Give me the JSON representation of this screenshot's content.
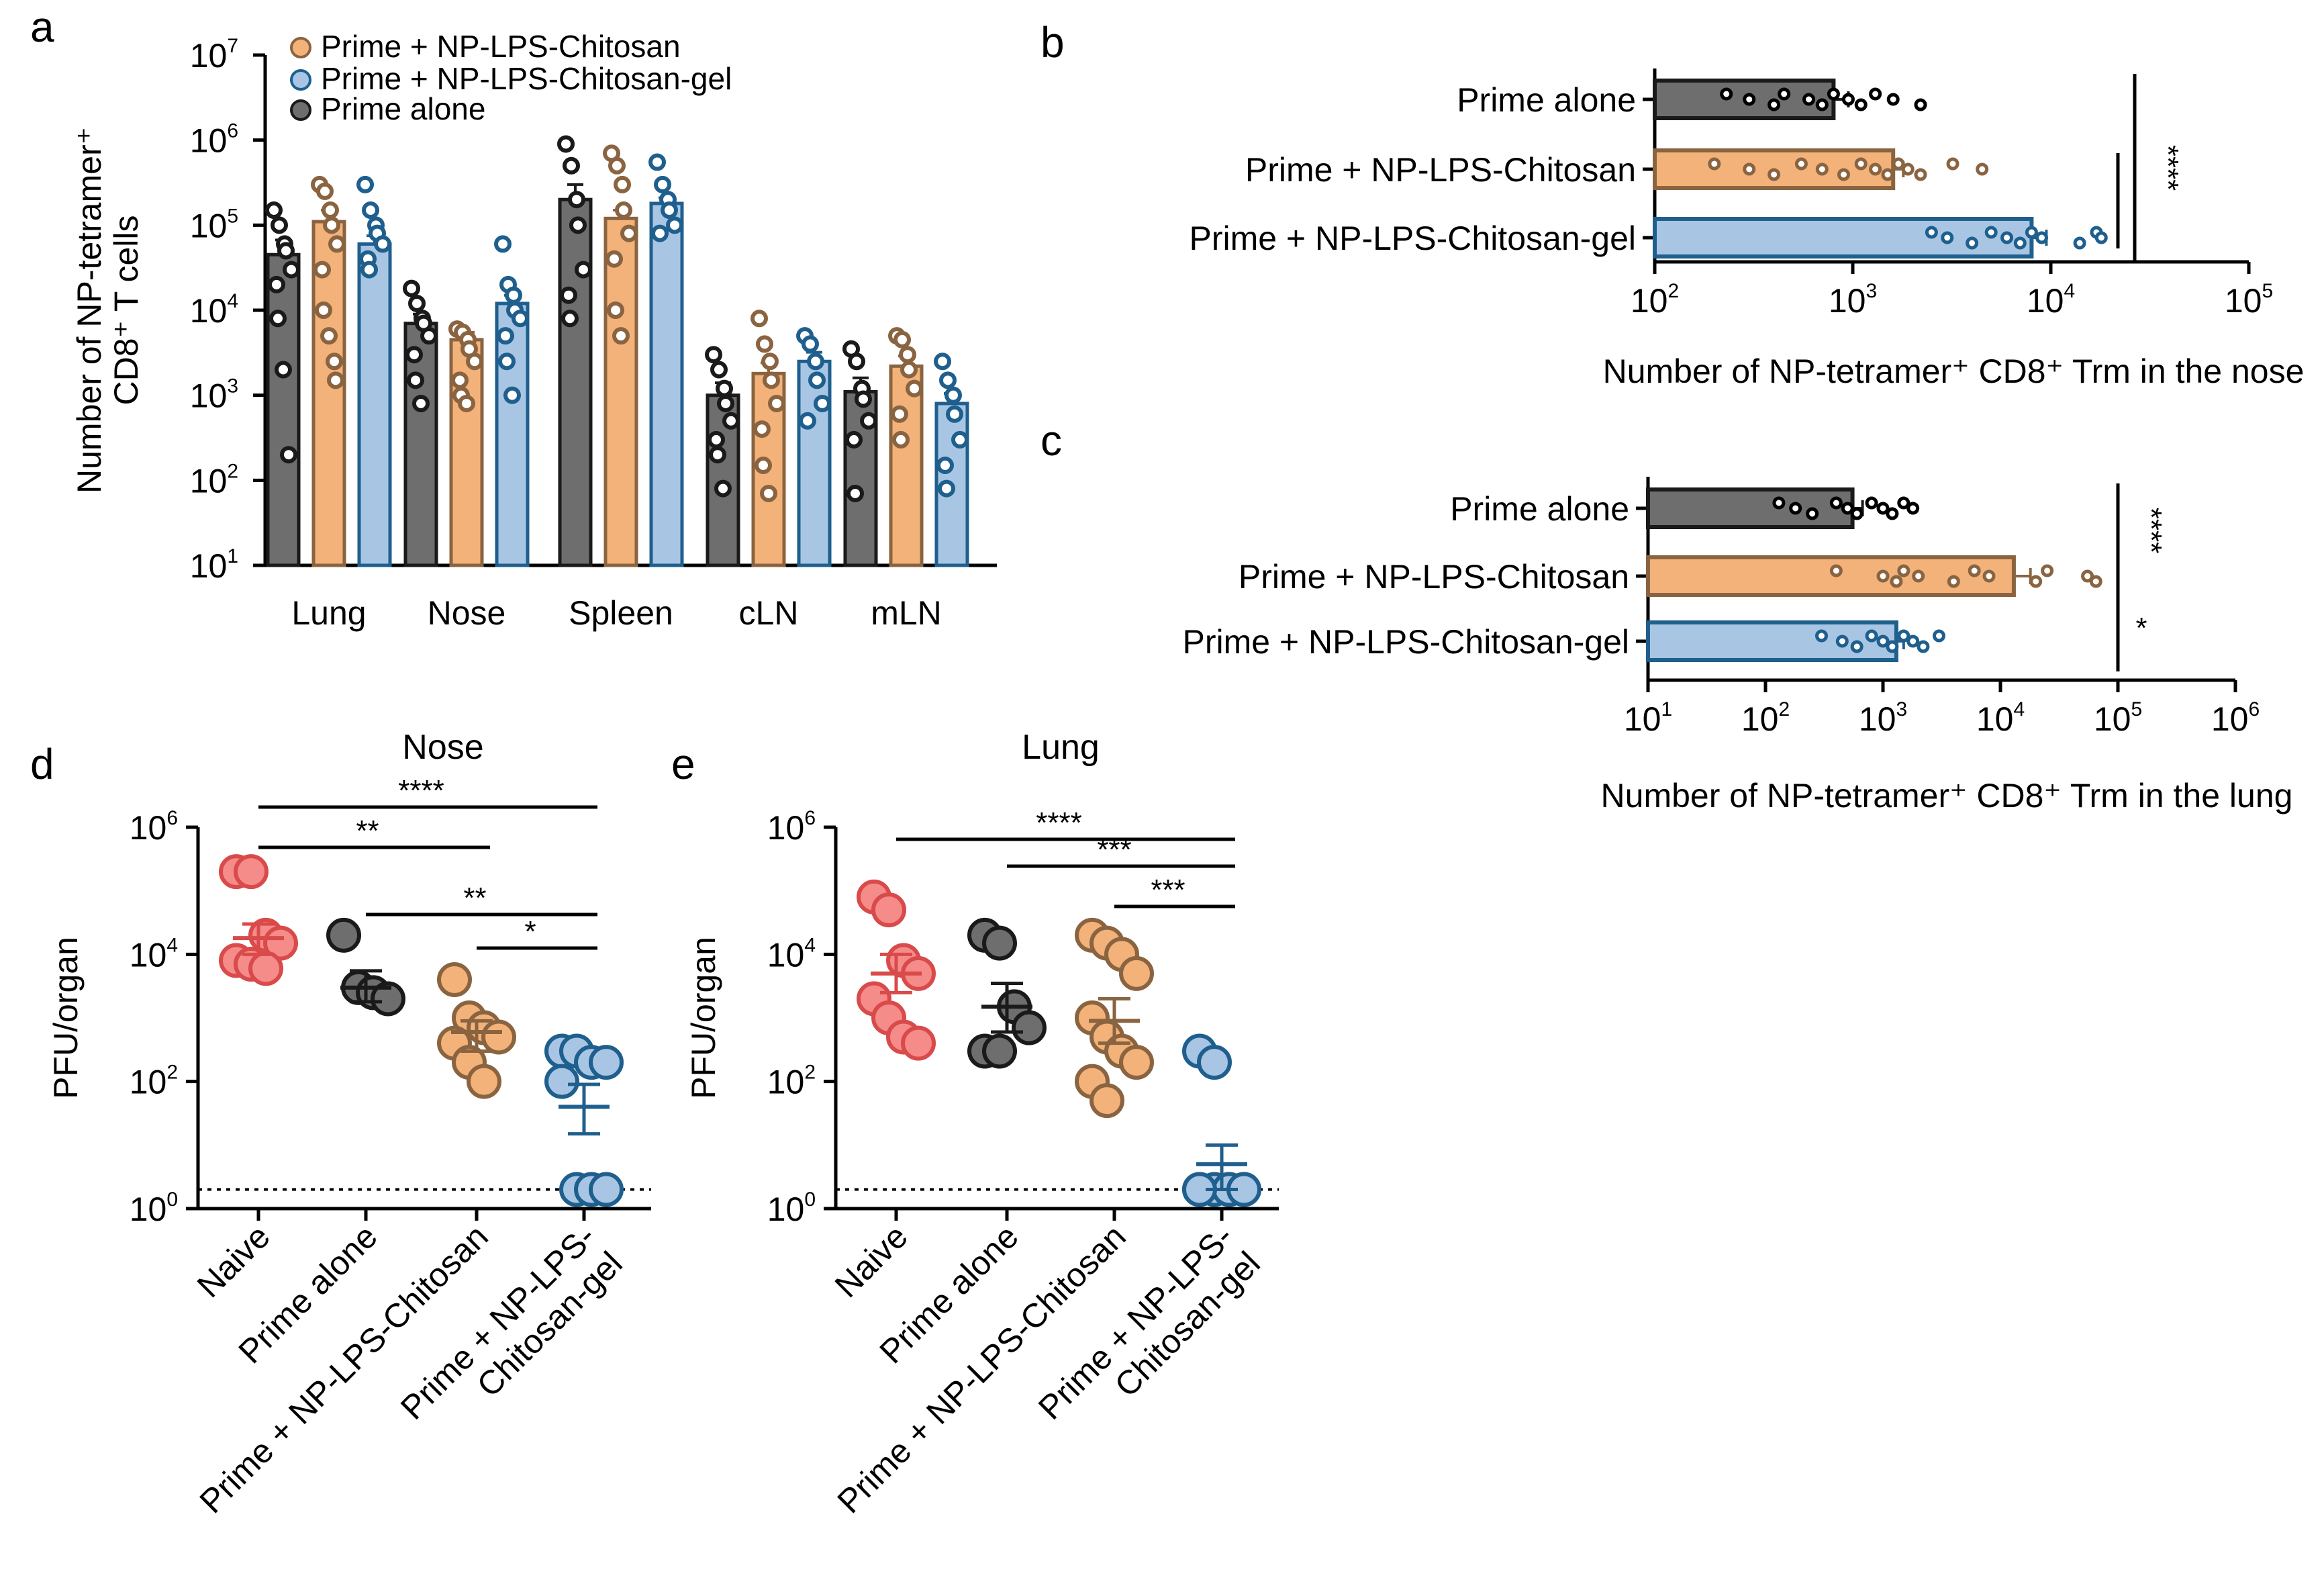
{
  "panels": {
    "a": "a",
    "b": "b",
    "c": "c",
    "d": "d",
    "e": "e"
  },
  "colors": {
    "grey": "#6e6e6e",
    "grey_edge": "#1a1a1a",
    "orange": "#f3b27a",
    "orange_edge": "#8a6440",
    "blue": "#a8c6e4",
    "blue_edge": "#1f5f8e",
    "red": "#f58c8a",
    "red_edge": "#d94a4a",
    "pt_grey": "#8c8c8c"
  },
  "chart_data": [
    {
      "id": "a",
      "type": "bar",
      "title": "",
      "ylabel_line1": "Number of NP-tetramer⁺",
      "ylabel_line2": "CD8⁺ T cells",
      "yscale": "log",
      "ylim_exp": [
        1,
        7
      ],
      "ytick_exps": [
        1,
        2,
        3,
        4,
        5,
        6,
        7
      ],
      "ytick_base": "10",
      "categories": [
        "Lung",
        "Nose",
        "Spleen",
        "cLN",
        "mLN"
      ],
      "legend": [
        "Prime + NP-LPS-Chitosan",
        "Prime + NP-LPS-Chitosan-gel",
        "Prime alone"
      ],
      "series": [
        {
          "name": "Prime alone",
          "color_key": "grey",
          "values": [
            45000,
            7000,
            200000,
            1000,
            1100
          ],
          "errors": [
            22000,
            2000,
            100000,
            400,
            500
          ],
          "points": [
            [
              150000,
              100000,
              60000,
              50000,
              30000,
              20000,
              8000,
              2000,
              200
            ],
            [
              18000,
              12000,
              8000,
              7000,
              5000,
              3000,
              1500,
              800
            ],
            [
              900000,
              500000,
              200000,
              100000,
              30000,
              15000,
              8000
            ],
            [
              3000,
              2000,
              1200,
              800,
              500,
              300,
              200,
              80
            ],
            [
              3500,
              2500,
              1200,
              900,
              500,
              300,
              70
            ]
          ]
        },
        {
          "name": "Prime + NP-LPS-Chitosan",
          "color_key": "orange",
          "values": [
            110000,
            4500,
            120000,
            1800,
            2200
          ],
          "errors": [
            40000,
            1000,
            30000,
            600,
            700
          ],
          "points": [
            [
              300000,
              250000,
              150000,
              100000,
              60000,
              30000,
              10000,
              5000,
              2500,
              1500
            ],
            [
              6000,
              5500,
              4500,
              3500,
              2500,
              1500,
              1000,
              800
            ],
            [
              700000,
              500000,
              300000,
              150000,
              80000,
              40000,
              10000,
              5000
            ],
            [
              8000,
              4000,
              2500,
              1500,
              800,
              400,
              150,
              70
            ],
            [
              5000,
              4500,
              3000,
              2000,
              1200,
              600,
              300
            ]
          ]
        },
        {
          "name": "Prime + NP-LPS-Chitosan-gel",
          "color_key": "blue",
          "values": [
            60000,
            12000,
            180000,
            2500,
            800
          ],
          "errors": [
            15000,
            3000,
            30000,
            700,
            250
          ],
          "points": [
            [
              300000,
              150000,
              100000,
              80000,
              60000,
              40000,
              30000
            ],
            [
              60000,
              20000,
              15000,
              10000,
              8000,
              5000,
              2500,
              1000
            ],
            [
              550000,
              300000,
              200000,
              150000,
              100000,
              80000
            ],
            [
              5000,
              4000,
              2500,
              1500,
              800,
              500
            ],
            [
              2500,
              1500,
              1000,
              600,
              300,
              150,
              80
            ]
          ]
        }
      ]
    },
    {
      "id": "b",
      "type": "bar",
      "orientation": "horizontal",
      "xlabel": "Number of NP-tetramer⁺ CD8⁺ Trm in the nose",
      "xscale": "log",
      "xlim_exp": [
        2,
        5
      ],
      "xtick_exps": [
        2,
        3,
        4,
        5
      ],
      "xtick_base": "10",
      "categories": [
        "Prime alone",
        "Prime + NP-LPS-Chitosan",
        "Prime + NP-LPS-Chitosan-gel"
      ],
      "series": [
        {
          "name": "Prime alone",
          "color_key": "grey",
          "value": 800,
          "error": 150,
          "points": [
            230,
            300,
            400,
            450,
            600,
            700,
            800,
            950,
            1100,
            1300,
            1600,
            2200
          ]
        },
        {
          "name": "Prime + NP-LPS-Chitosan",
          "color_key": "orange",
          "value": 1600,
          "error": 200,
          "points": [
            200,
            300,
            400,
            550,
            700,
            900,
            1100,
            1300,
            1500,
            1700,
            1900,
            2200,
            3200,
            4500
          ]
        },
        {
          "name": "Prime + NP-LPS-Chitosan-gel",
          "color_key": "blue",
          "value": 8000,
          "error": 1500,
          "points": [
            2500,
            3000,
            4000,
            5000,
            6000,
            7000,
            8000,
            9000,
            14000,
            17000,
            18000
          ]
        }
      ],
      "significance": [
        "****"
      ]
    },
    {
      "id": "c",
      "type": "bar",
      "orientation": "horizontal",
      "xlabel": "Number of NP-tetramer⁺ CD8⁺ Trm in the lung",
      "xscale": "log",
      "xlim_exp": [
        1,
        6
      ],
      "xtick_exps": [
        1,
        2,
        3,
        4,
        5,
        6
      ],
      "xtick_base": "10",
      "categories": [
        "Prime alone",
        "Prime + NP-LPS-Chitosan",
        "Prime + NP-LPS-Chitosan-gel"
      ],
      "series": [
        {
          "name": "Prime alone",
          "color_key": "grey",
          "value": 550,
          "error": 120,
          "points": [
            130,
            180,
            250,
            400,
            500,
            600,
            800,
            1000,
            1200,
            1500,
            1800
          ]
        },
        {
          "name": "Prime + NP-LPS-Chitosan",
          "color_key": "orange",
          "value": 13000,
          "error": 5000,
          "points": [
            400,
            1000,
            1300,
            1500,
            2000,
            4000,
            6000,
            8000,
            20000,
            25000,
            55000,
            65000
          ]
        },
        {
          "name": "Prime + NP-LPS-Chitosan-gel",
          "color_key": "blue",
          "value": 1300,
          "error": 200,
          "points": [
            300,
            450,
            600,
            800,
            1000,
            1200,
            1500,
            1800,
            2200,
            3000
          ]
        }
      ],
      "significance": [
        "****",
        "*"
      ]
    },
    {
      "id": "d",
      "type": "scatter",
      "title": "Nose",
      "ylabel": "PFU/organ",
      "yscale": "log",
      "ylim_exp": [
        0,
        6
      ],
      "ytick_exps": [
        0,
        2,
        4,
        6
      ],
      "ytick_base": "10",
      "detection_limit": 2,
      "categories": [
        "Naive",
        "Prime alone",
        "Prime + NP-LPS-Chitosan",
        "Prime + NP-LPS-\nChitosan-gel"
      ],
      "category_lines": [
        [
          "Naive"
        ],
        [
          "Prime alone"
        ],
        [
          "Prime + NP-LPS-Chitosan"
        ],
        [
          "Prime + NP-LPS-",
          "Chitosan-gel"
        ]
      ],
      "series": [
        {
          "name": "Naive",
          "color_key": "red",
          "mean": 18000,
          "sem": [
            10000,
            30000
          ],
          "points": [
            200000,
            200000,
            20000,
            15000,
            8000,
            7000,
            6000
          ]
        },
        {
          "name": "Prime alone",
          "color_key": "grey",
          "mean": 3000,
          "sem": [
            1800,
            5500
          ],
          "points": [
            20000,
            3000,
            2500,
            2000
          ]
        },
        {
          "name": "Prime + NP-LPS-Chitosan",
          "color_key": "orange",
          "mean": 600,
          "sem": [
            300,
            900
          ],
          "points": [
            4000,
            1000,
            700,
            500,
            400,
            200,
            100
          ]
        },
        {
          "name": "Prime + NP-LPS-Chitosan-gel",
          "color_key": "blue",
          "mean": 40,
          "sem": [
            15,
            90
          ],
          "points": [
            300,
            300,
            200,
            200,
            100,
            2,
            2,
            2
          ]
        }
      ],
      "significance": [
        {
          "from": 0,
          "to": 3,
          "label": "****"
        },
        {
          "from": 0,
          "to": 2,
          "label": "**"
        },
        {
          "from": 1,
          "to": 3,
          "label": "**"
        },
        {
          "from": 2,
          "to": 3,
          "label": "*"
        }
      ]
    },
    {
      "id": "e",
      "type": "scatter",
      "title": "Lung",
      "ylabel": "PFU/organ",
      "yscale": "log",
      "ylim_exp": [
        0,
        6
      ],
      "ytick_exps": [
        0,
        2,
        4,
        6
      ],
      "ytick_base": "10",
      "detection_limit": 2,
      "categories": [
        "Naive",
        "Prime alone",
        "Prime + NP-LPS-Chitosan",
        "Prime + NP-LPS-\nChitosan-gel"
      ],
      "category_lines": [
        [
          "Naive"
        ],
        [
          "Prime alone"
        ],
        [
          "Prime + NP-LPS-Chitosan"
        ],
        [
          "Prime + NP-LPS-",
          "Chitosan-gel"
        ]
      ],
      "series": [
        {
          "name": "Naive",
          "color_key": "red",
          "mean": 5000,
          "sem": [
            2500,
            10000
          ],
          "points": [
            80000,
            50000,
            8000,
            5000,
            2000,
            1000,
            500,
            400
          ]
        },
        {
          "name": "Prime alone",
          "color_key": "grey",
          "mean": 1500,
          "sem": [
            600,
            3500
          ],
          "points": [
            20000,
            15000,
            1500,
            700,
            300,
            300
          ]
        },
        {
          "name": "Prime + NP-LPS-Chitosan",
          "color_key": "orange",
          "mean": 900,
          "sem": [
            400,
            2000
          ],
          "points": [
            20000,
            15000,
            10000,
            5000,
            1000,
            500,
            300,
            200,
            100,
            50
          ]
        },
        {
          "name": "Prime + NP-LPS-Chitosan-gel",
          "color_key": "blue",
          "mean": 5,
          "sem": [
            2,
            10
          ],
          "points": [
            300,
            200,
            2,
            2,
            2,
            2,
            2,
            2,
            2
          ]
        }
      ],
      "significance": [
        {
          "from": 0,
          "to": 3,
          "label": "****"
        },
        {
          "from": 1,
          "to": 3,
          "label": "***"
        },
        {
          "from": 2,
          "to": 3,
          "label": "***"
        }
      ]
    }
  ]
}
